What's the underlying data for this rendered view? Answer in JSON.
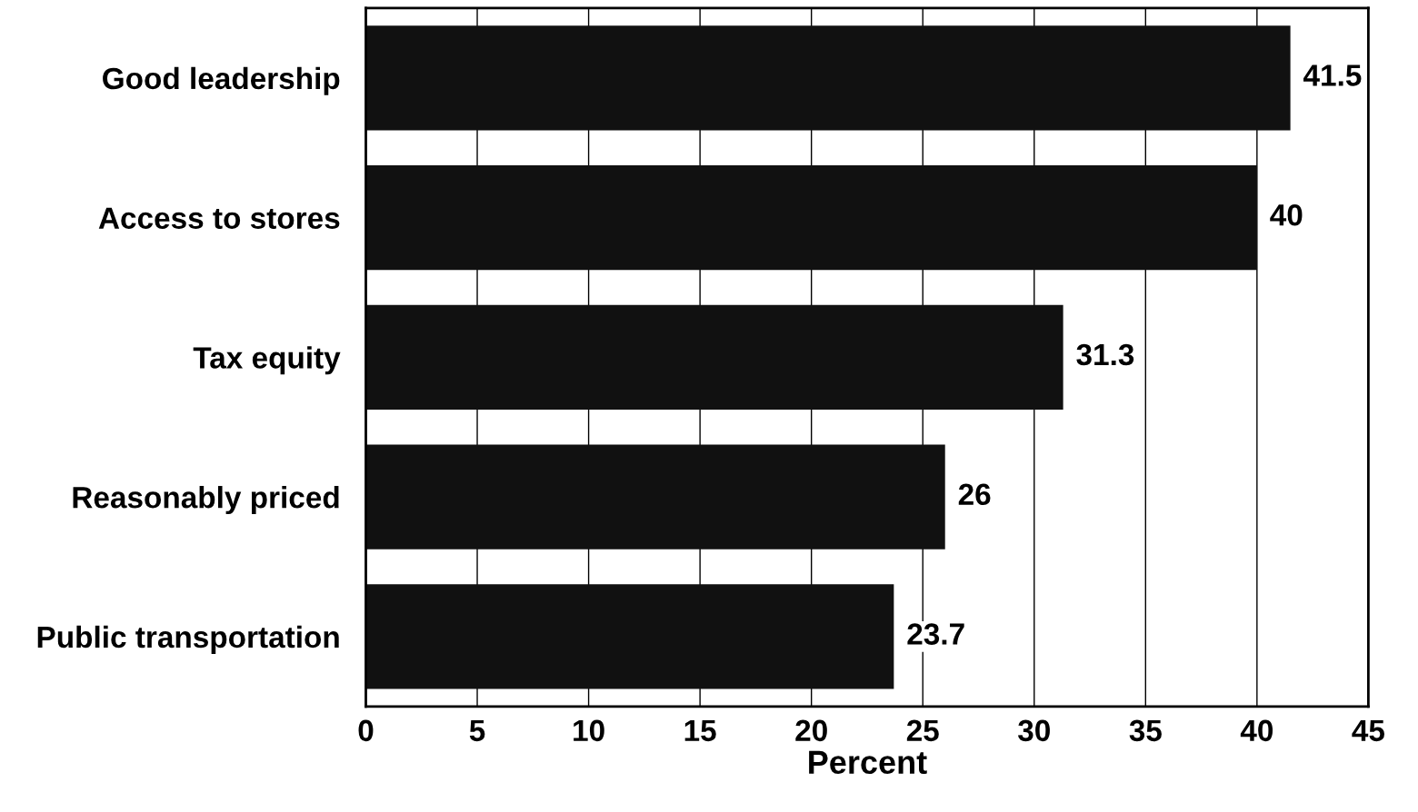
{
  "chart_data": {
    "type": "bar",
    "orientation": "horizontal",
    "xlabel": "Percent",
    "categories": [
      "Good leadership",
      "Access to stores",
      "Tax equity",
      "Reasonably priced",
      "Public transportation"
    ],
    "values": [
      41.5,
      40,
      31.3,
      26,
      23.7
    ],
    "color": "#111111",
    "data_labels": true,
    "xlim": [
      0,
      45
    ],
    "xticks": [
      0,
      5,
      10,
      15,
      20,
      25,
      30,
      35,
      40,
      45
    ],
    "grid": "x"
  }
}
